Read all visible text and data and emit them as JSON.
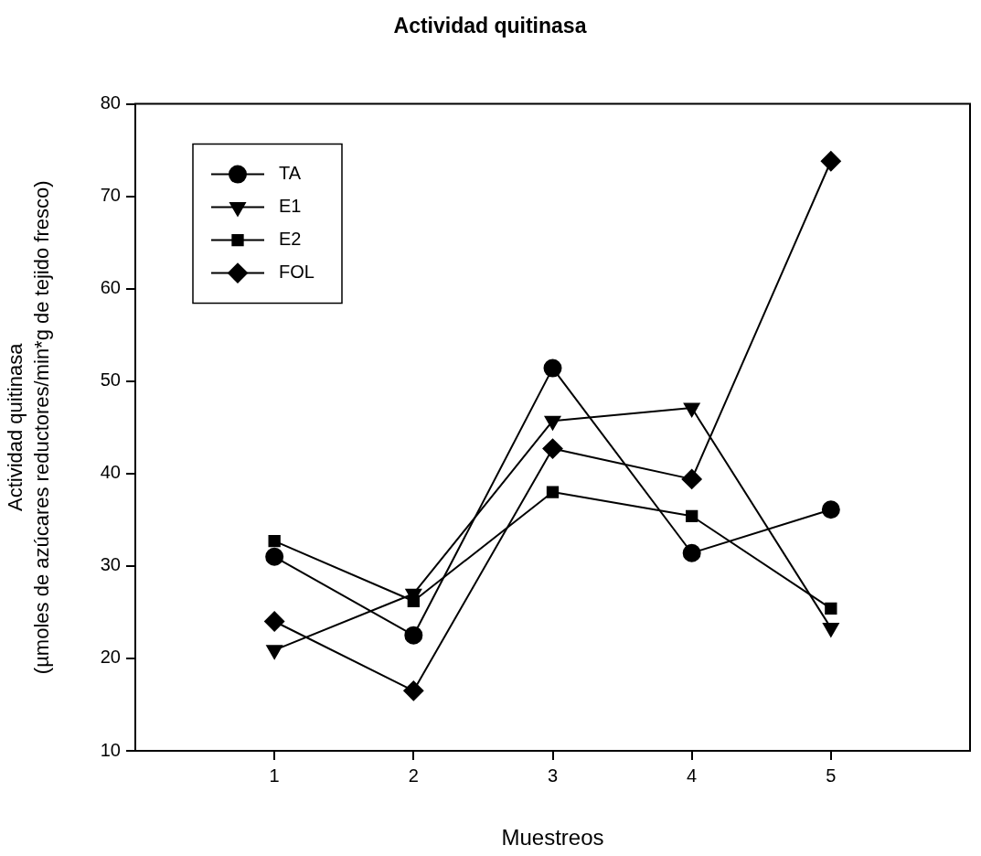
{
  "chart_data": {
    "type": "line",
    "title": "Actividad quitinasa",
    "xlabel": "Muestreos",
    "ylabel": "Actividad quitinasa\n(µmoles de azúcares reductores/min*g de tejido fresco)",
    "x": [
      1,
      2,
      3,
      4,
      5
    ],
    "xlim": [
      0,
      6
    ],
    "xticks": [
      1,
      2,
      3,
      4,
      5
    ],
    "ylim": [
      10,
      80
    ],
    "yticks": [
      10,
      20,
      30,
      40,
      50,
      60,
      70,
      80
    ],
    "grid": false,
    "legend": "top left",
    "line_style": "solid",
    "series": [
      {
        "name": "TA",
        "color": "#000000",
        "marker": "circle",
        "values": [
          31.0,
          22.5,
          51.4,
          31.4,
          36.1
        ]
      },
      {
        "name": "E1",
        "color": "#000000",
        "marker": "triangle",
        "values": [
          20.9,
          27.0,
          45.7,
          47.1,
          23.3
        ]
      },
      {
        "name": "E2",
        "color": "#000000",
        "marker": "square",
        "values": [
          32.7,
          26.2,
          38.0,
          35.4,
          25.4
        ]
      },
      {
        "name": "FOL",
        "color": "#000000",
        "marker": "diamond",
        "values": [
          24.0,
          16.5,
          42.7,
          39.4,
          73.8
        ]
      }
    ]
  }
}
